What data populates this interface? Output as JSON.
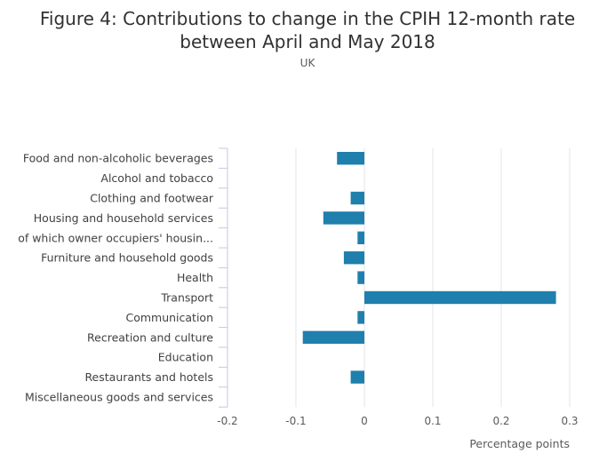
{
  "title_line1": "Figure 4: Contributions to change in the CPIH 12-month rate",
  "title_line2": "between April and May 2018",
  "subtitle": "UK",
  "chart_data": {
    "type": "bar",
    "orientation": "horizontal",
    "title": "Figure 4: Contributions to change in the CPIH 12-month rate between April and May 2018",
    "subtitle": "UK",
    "xlabel": "Percentage points",
    "ylabel": "",
    "categories": [
      "Food and non-alcoholic beverages",
      "Alcohol and tobacco",
      "Clothing and footwear",
      "Housing and household services",
      "of which owner occupiers' housin...",
      "Furniture and household goods",
      "Health",
      "Transport",
      "Communication",
      "Recreation and culture",
      "Education",
      "Restaurants and hotels",
      "Miscellaneous goods and services"
    ],
    "values": [
      -0.04,
      0,
      -0.02,
      -0.06,
      -0.01,
      -0.03,
      -0.01,
      0.28,
      -0.01,
      -0.09,
      0,
      -0.02,
      0
    ],
    "xlim": [
      -0.2,
      0.3
    ],
    "xticks": [
      -0.2,
      -0.1,
      0,
      0.1,
      0.2,
      0.3
    ],
    "xtick_labels": [
      "-0.2",
      "-0.1",
      "0",
      "0.1",
      "0.2",
      "0.3"
    ],
    "grid": true,
    "bar_color": "#1f7fad",
    "grid_color": "#e0e4ea",
    "axis_color": "#c3c8e6"
  }
}
